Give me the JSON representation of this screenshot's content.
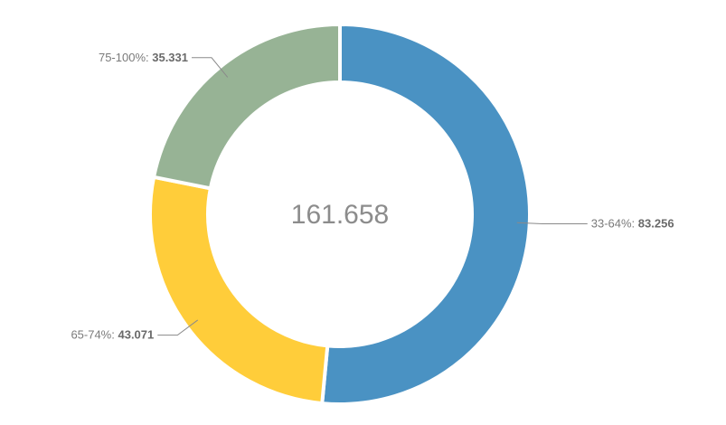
{
  "chart_data": {
    "type": "pie",
    "variant": "donut",
    "total_label": "161.658",
    "slices": [
      {
        "label": "33-64%",
        "value": 83.256,
        "value_label": "83.256",
        "color": "#4a92c3"
      },
      {
        "label": "65-74%",
        "value": 43.071,
        "value_label": "43.071",
        "color": "#ffcd3a"
      },
      {
        "label": "75-100%",
        "value": 35.331,
        "value_label": "35.331",
        "color": "#97b395"
      }
    ],
    "start": "top",
    "direction": "clockwise",
    "legend": "none",
    "labels": "outside-with-leader-lines"
  }
}
